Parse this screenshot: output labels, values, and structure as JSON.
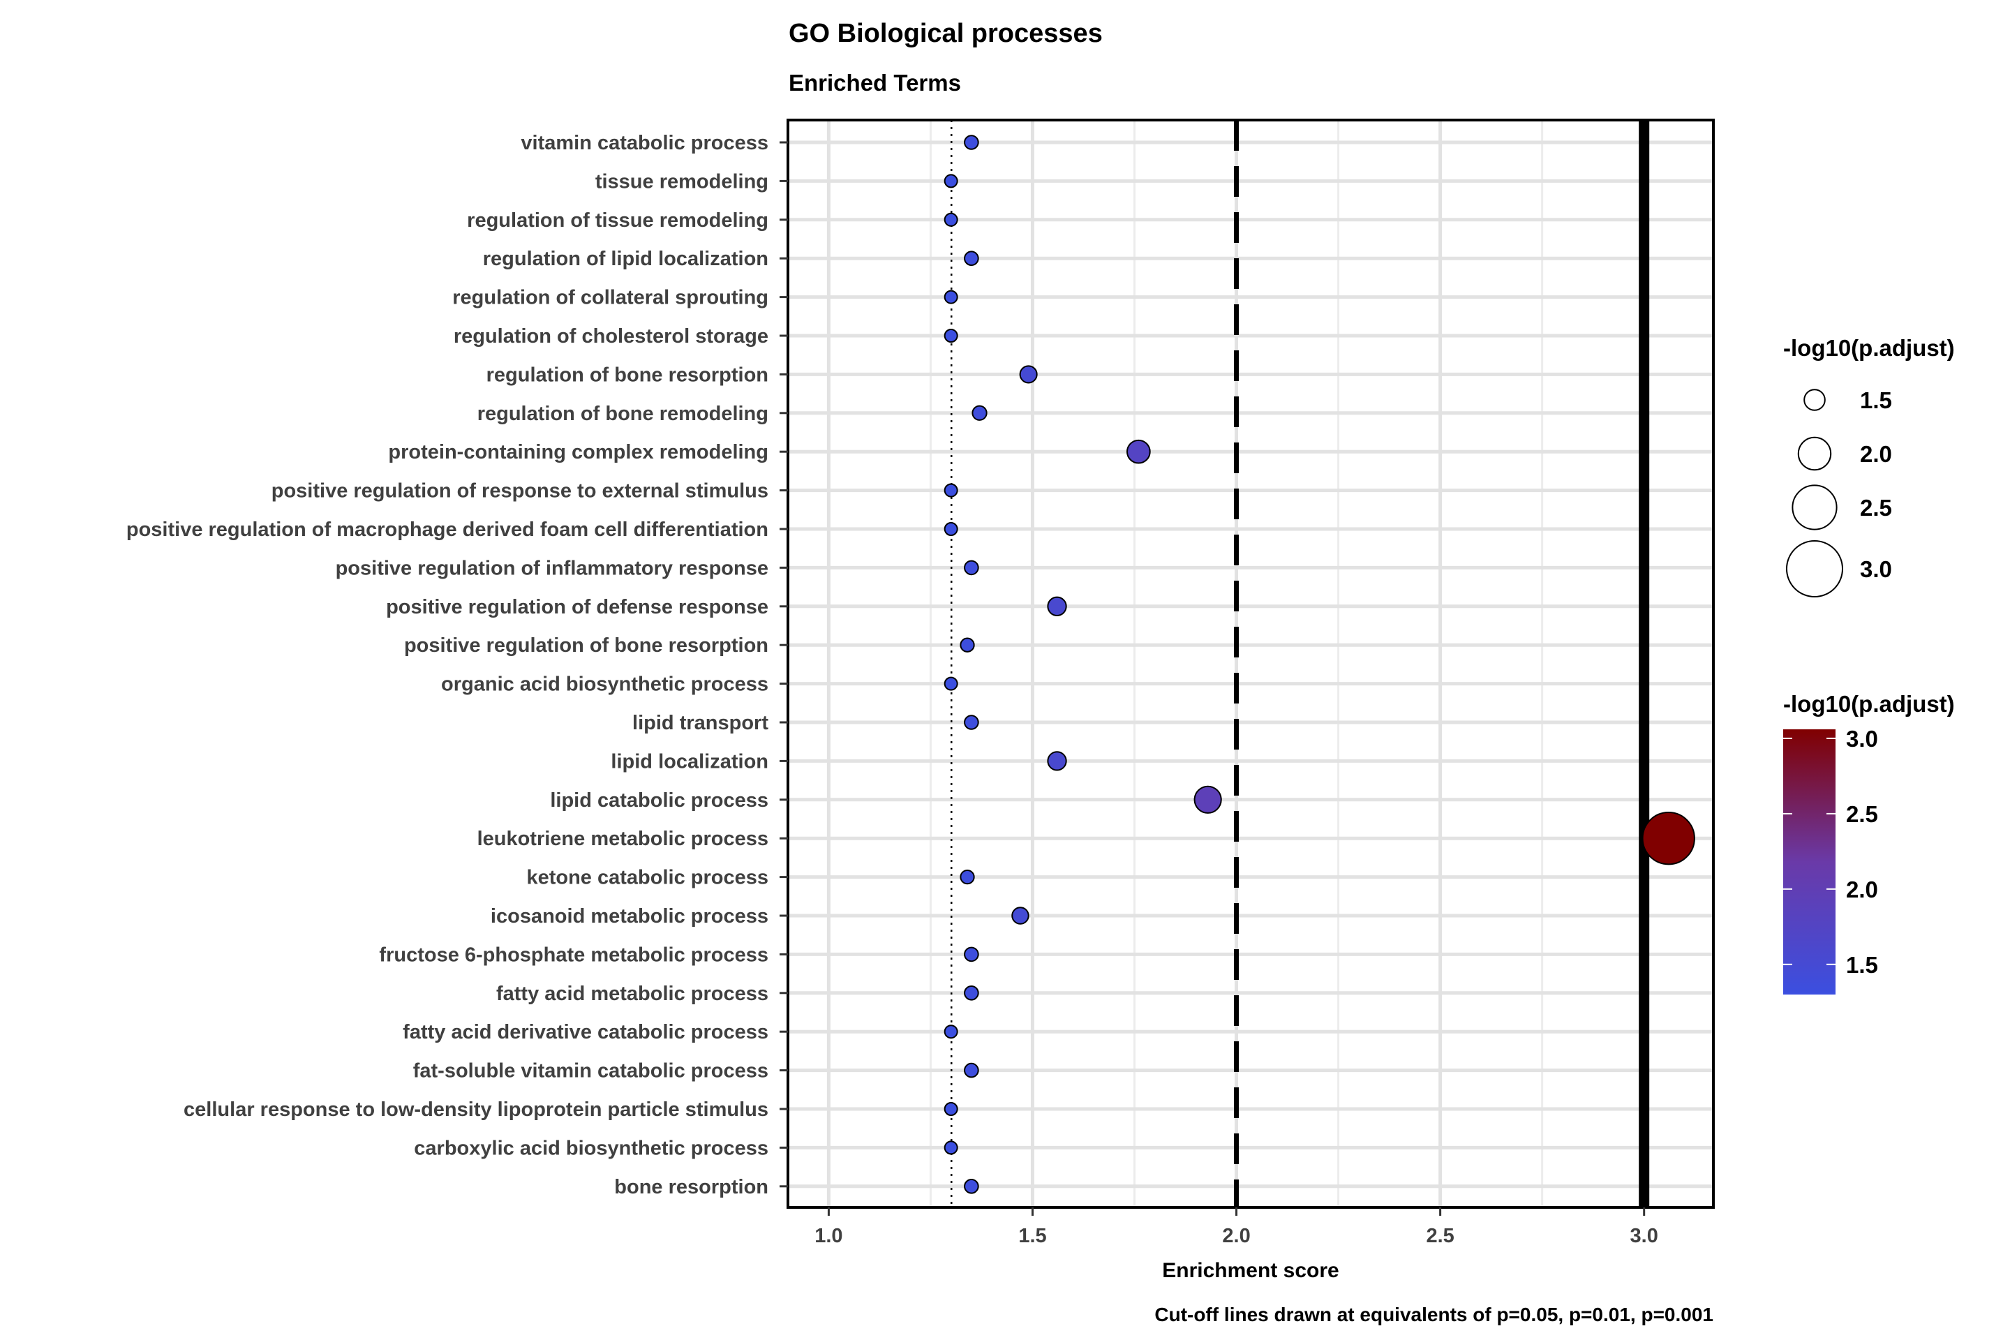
{
  "chart_data": {
    "type": "scatter",
    "title": "GO Biological processes",
    "subtitle": "Enriched Terms",
    "xlabel": "Enrichment score",
    "ylabel": "",
    "caption": "Cut-off lines drawn at equivalents of p=0.05, p=0.01, p=0.001",
    "xlim": [
      0.9,
      3.17
    ],
    "xticks": [
      1.0,
      1.5,
      2.0,
      2.5,
      3.0
    ],
    "xtick_labels": [
      "1.0",
      "1.5",
      "2.0",
      "2.5",
      "3.0"
    ],
    "grid": true,
    "cutoff_lines": [
      {
        "x": 1.301,
        "style": "dotted"
      },
      {
        "x": 2.0,
        "style": "dashed"
      },
      {
        "x": 3.0,
        "style": "solid"
      }
    ],
    "categories": [
      "vitamin catabolic process",
      "tissue remodeling",
      "regulation of tissue remodeling",
      "regulation of lipid localization",
      "regulation of collateral sprouting",
      "regulation of cholesterol storage",
      "regulation of bone resorption",
      "regulation of bone remodeling",
      "protein-containing complex remodeling",
      "positive regulation of response to external stimulus",
      "positive regulation of macrophage derived foam cell differentiation",
      "positive regulation of inflammatory response",
      "positive regulation of defense response",
      "positive regulation of bone resorption",
      "organic acid biosynthetic process",
      "lipid transport",
      "lipid localization",
      "lipid catabolic process",
      "leukotriene metabolic process",
      "ketone catabolic process",
      "icosanoid metabolic process",
      "fructose 6-phosphate metabolic process",
      "fatty acid metabolic process",
      "fatty acid derivative catabolic process",
      "fat-soluble vitamin catabolic process",
      "cellular response to low-density lipoprotein particle stimulus",
      "carboxylic acid biosynthetic process",
      "bone resorption"
    ],
    "values": [
      1.35,
      1.3,
      1.3,
      1.35,
      1.3,
      1.3,
      1.49,
      1.37,
      1.76,
      1.3,
      1.3,
      1.35,
      1.56,
      1.34,
      1.3,
      1.35,
      1.56,
      1.93,
      3.06,
      1.34,
      1.47,
      1.35,
      1.35,
      1.3,
      1.35,
      1.3,
      1.3,
      1.35
    ],
    "size_legend": {
      "title": "-log10(p.adjust)",
      "labels": [
        "1.5",
        "2.0",
        "2.5",
        "3.0"
      ],
      "values": [
        1.5,
        2.0,
        2.5,
        3.0
      ]
    },
    "color_legend": {
      "title": "-log10(p.adjust)",
      "labels": [
        "3.0",
        "2.5",
        "2.0",
        "1.5"
      ],
      "values": [
        3.0,
        2.5,
        2.0,
        1.5
      ],
      "range": [
        1.3,
        3.06
      ],
      "low_color": "#3b4fe0",
      "high_color": "#800000"
    },
    "legend_position": "right"
  }
}
